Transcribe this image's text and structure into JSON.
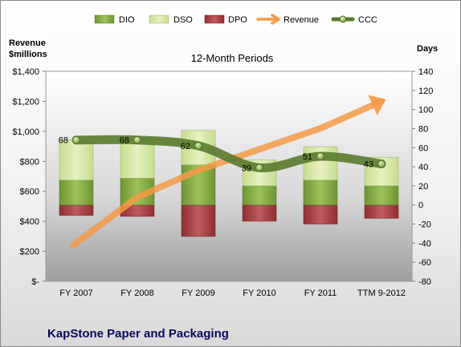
{
  "chart_data": {
    "type": "bar",
    "subtitle": "12-Month Periods",
    "footer": "KapStone Paper and Packaging",
    "y_left_title_lines": [
      "Revenue",
      "$millions"
    ],
    "y_right_title": "Days",
    "categories": [
      "FY 2007",
      "FY 2008",
      "FY 2009",
      "FY 2010",
      "FY 2011",
      "TTM 9-2012"
    ],
    "y_left": {
      "min": 0,
      "max": 1400,
      "step": 200,
      "tick_labels": [
        "$-",
        "$200",
        "$400",
        "$600",
        "$800",
        "$1,000",
        "$1,200",
        "$1,400"
      ]
    },
    "y_right": {
      "min": -80,
      "max": 140,
      "step": 20,
      "tick_labels": [
        "-80",
        "-60",
        "-40",
        "-20",
        "0",
        "20",
        "40",
        "60",
        "80",
        "100",
        "120",
        "140"
      ]
    },
    "series": [
      {
        "name": "DIO",
        "kind": "stacked-bar",
        "axis": "days",
        "color": "#8cb04a",
        "values": [
          26,
          28,
          42,
          20,
          26,
          20
        ]
      },
      {
        "name": "DSO",
        "kind": "stacked-bar",
        "axis": "days",
        "color": "#d7e8a6",
        "values": [
          42,
          40,
          36,
          27,
          35,
          30
        ]
      },
      {
        "name": "DPO",
        "kind": "bar-below-zero",
        "axis": "days",
        "color": "#b5474a",
        "values": [
          -11,
          -12,
          -33,
          -17,
          -20,
          -14
        ]
      },
      {
        "name": "Revenue",
        "kind": "arrow-line",
        "axis": "revenue",
        "color": "#f39a48",
        "values": [
          240,
          560,
          740,
          880,
          1020,
          1200
        ]
      },
      {
        "name": "CCC",
        "kind": "smooth-line-with-markers",
        "axis": "days",
        "color": "#5a7a2e",
        "values": [
          68,
          68,
          62,
          39,
          51,
          43
        ],
        "labels": [
          "68",
          "68",
          "62",
          "39",
          "51",
          "43"
        ]
      }
    ],
    "legend": [
      "DIO",
      "DSO",
      "DPO",
      "Revenue",
      "CCC"
    ],
    "legend_position": "top",
    "grid": false
  }
}
